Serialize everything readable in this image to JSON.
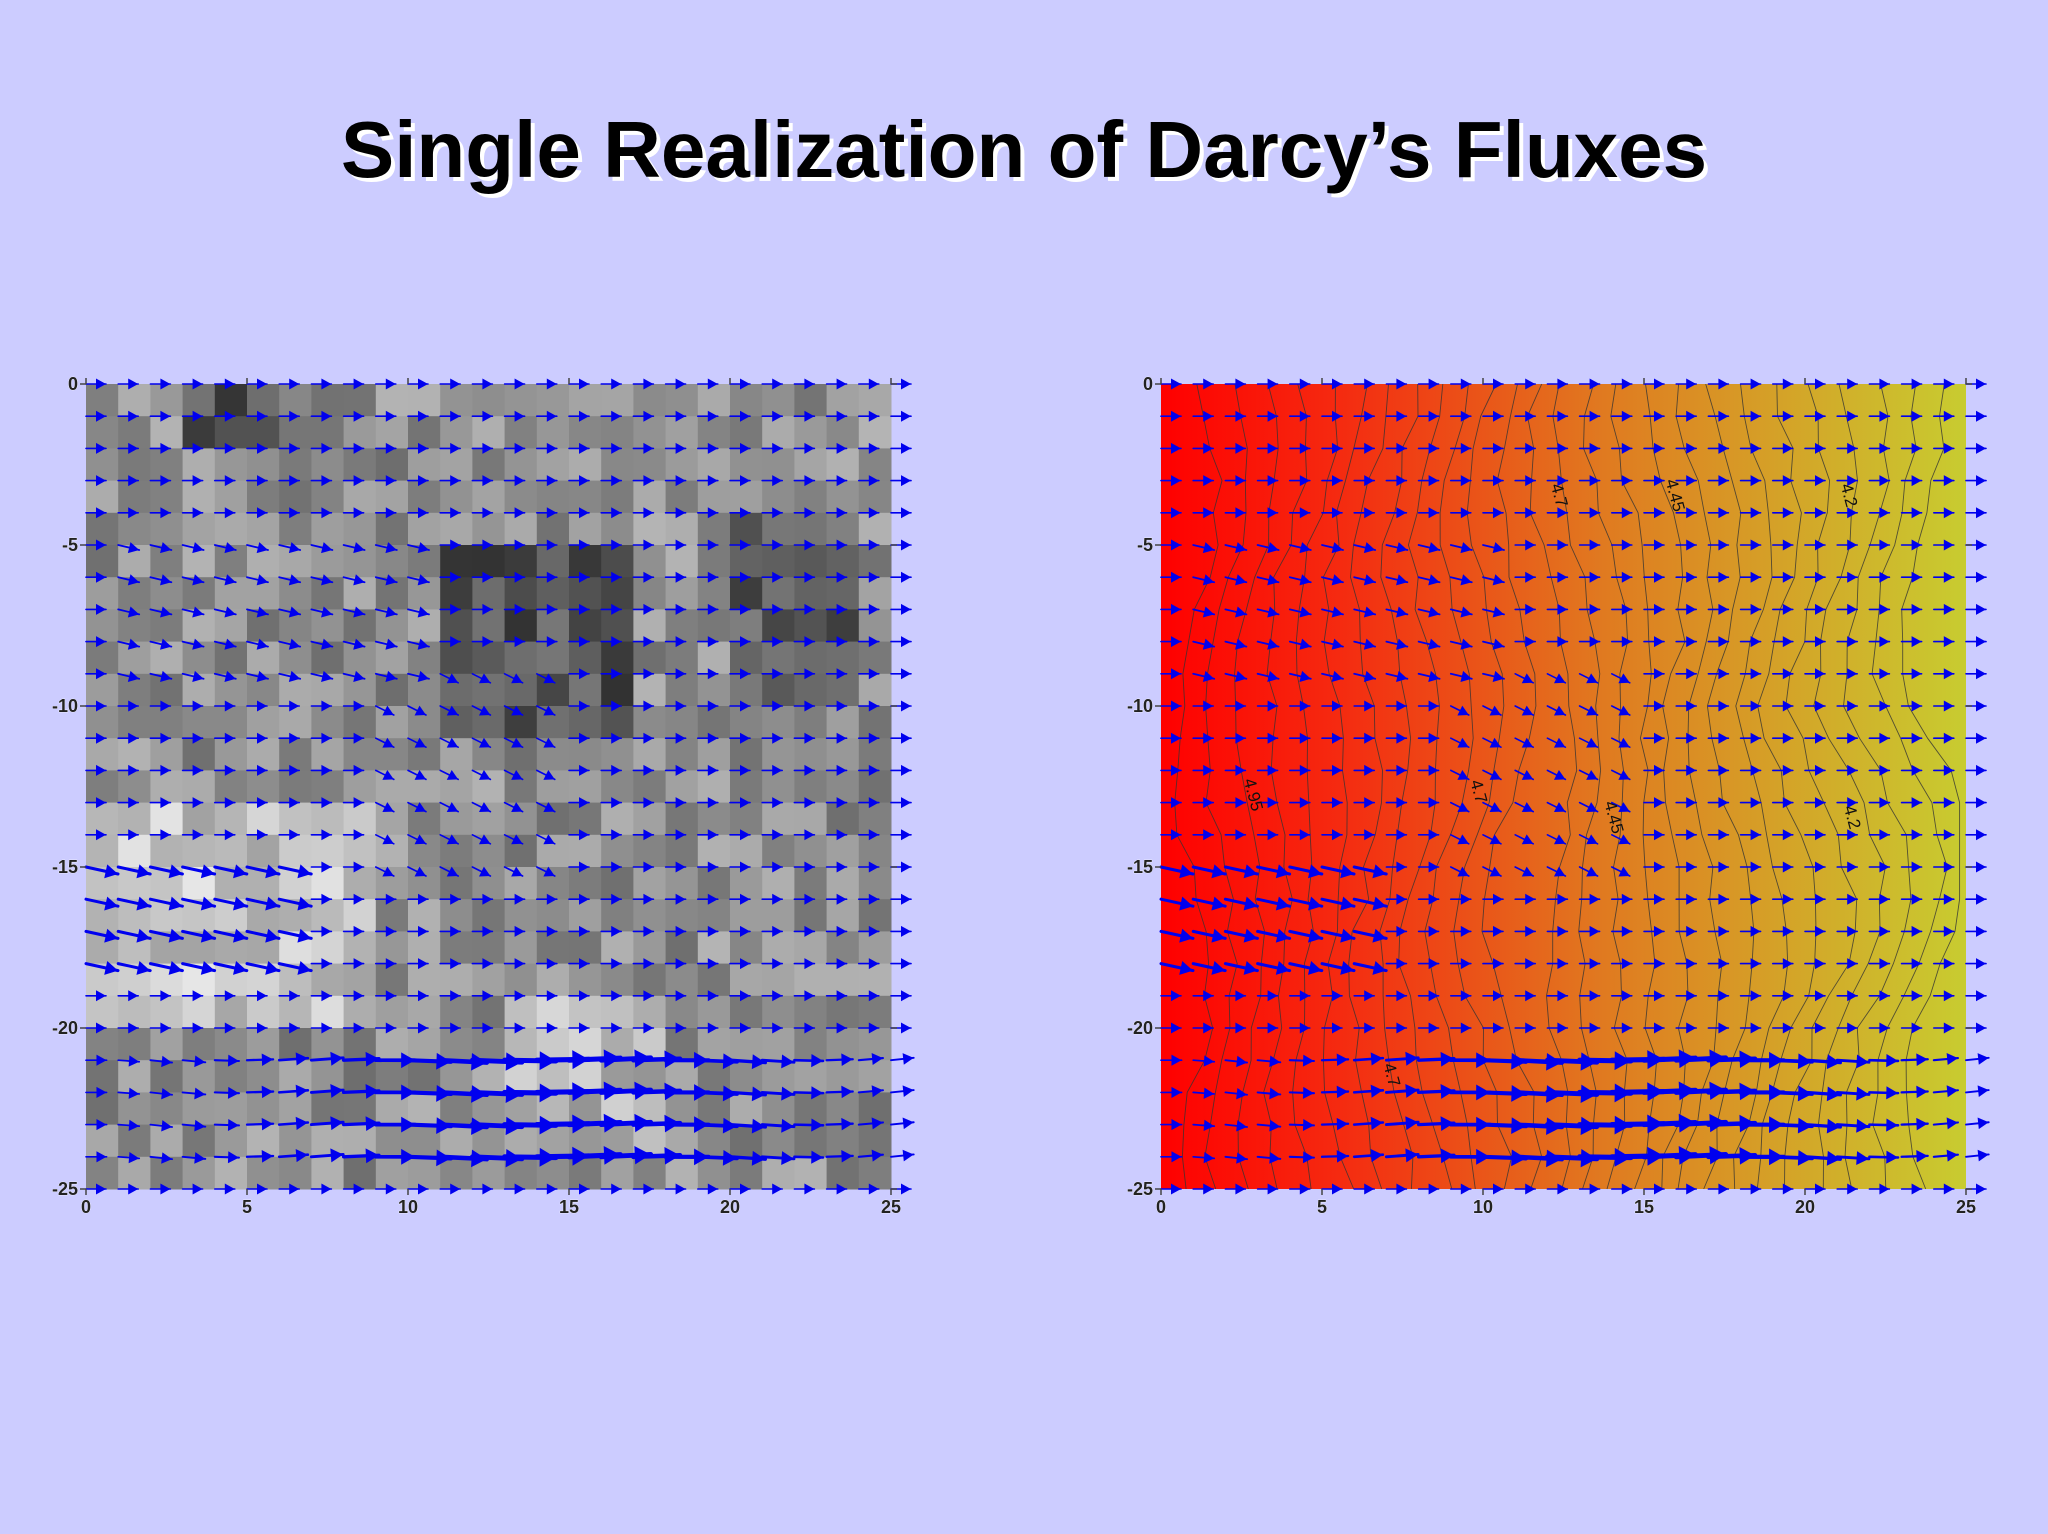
{
  "slide": {
    "title": "Single Realization of Darcy’s Fluxes"
  },
  "colors": {
    "background": "#ccccff",
    "arrow": "#0000ee",
    "contour_line": "#333333",
    "hot": "#ff0000",
    "mid": "#e07a20",
    "cool": "#c8cc30"
  },
  "chart_data": [
    {
      "type": "heatmap",
      "name": "permeability-field-with-flux-vectors",
      "field": "grayscale permeability realization (25 x 25 cells)",
      "overlay": "Darcy flux vectors (quiver)",
      "xlim": [
        0,
        25
      ],
      "ylim": [
        -25,
        0
      ],
      "x_ticks": [
        0,
        5,
        10,
        15,
        20,
        25
      ],
      "y_ticks": [
        0,
        -5,
        -10,
        -15,
        -20,
        -25
      ],
      "x_tick_labels": [
        "0",
        "5",
        "10",
        "15",
        "20",
        "25"
      ],
      "y_tick_labels": [
        "0",
        "-5",
        "-10",
        "-15",
        "-20",
        "-25"
      ],
      "xlabel": "",
      "ylabel": "",
      "grid": false
    },
    {
      "type": "heatmap",
      "name": "hydraulic-head-contours-with-flux-vectors",
      "field": "hydraulic head (red high, yellow low)",
      "overlay": "Darcy flux vectors (quiver) and head contours",
      "xlim": [
        0,
        25
      ],
      "ylim": [
        -25,
        0
      ],
      "x_ticks": [
        0,
        5,
        10,
        15,
        20,
        25
      ],
      "y_ticks": [
        0,
        -5,
        -10,
        -15,
        -20,
        -25
      ],
      "x_tick_labels": [
        "0",
        "5",
        "10",
        "15",
        "20",
        "25"
      ],
      "y_tick_labels": [
        "0",
        "-5",
        "-10",
        "-15",
        "-20",
        "-25"
      ],
      "contour_labels": [
        {
          "text": "4.7",
          "x": 12.2,
          "y": -3.5
        },
        {
          "text": "4.45",
          "x": 15.8,
          "y": -3.5
        },
        {
          "text": "4.2",
          "x": 21.2,
          "y": -3.5
        },
        {
          "text": "4.95",
          "x": 2.7,
          "y": -12.8
        },
        {
          "text": "4.7",
          "x": 9.7,
          "y": -12.7
        },
        {
          "text": "4.45",
          "x": 13.9,
          "y": -13.5
        },
        {
          "text": "4.2",
          "x": 21.3,
          "y": -13.5
        },
        {
          "text": "4.7",
          "x": 7.0,
          "y": -21.5
        }
      ],
      "contour_levels": [
        4.95,
        4.7,
        4.45,
        4.2
      ],
      "xlabel": "",
      "ylabel": "",
      "grid": false
    }
  ]
}
